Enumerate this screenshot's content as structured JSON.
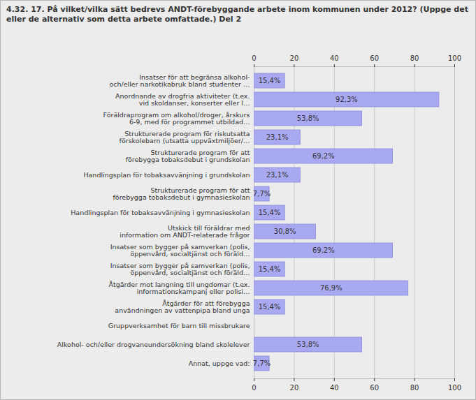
{
  "chart_data": {
    "type": "bar",
    "title": "4.32. 17. På vilket/vilka sätt bedrevs ANDT-förebyggande arbete inom kommunen under 2012? (Uppge det eller de alternativ som detta arbete omfattade.) Del 2",
    "orientation": "horizontal",
    "categories": [
      "Insatser för att begränsa alkohol-\noch/eller narkotikabruk bland studenter …",
      "Anordnande av drogfria aktiviteter (t.ex.\nvid skoldanser, konserter eller l…",
      "Föräldraprogram om alkohol/droger, årskurs\n6-9, med för programmet utbildad…",
      "Strukturerade program för riskutsatta\nförskolebarn (utsatta uppväxtmiljöer/…",
      "Strukturerade program för att\nförebygga tobaksdebut i grundskolan",
      "Handlingsplan för tobaksavvänjning i grundskolan",
      "Strukturerade program för att\nförebygga tobaksdebut i gymnasieskolan",
      "Handlingsplan för tobaksavvänjning i gymnasieskolan",
      "Utskick till föräldrar med\ninformation om ANDT-relaterade frågor",
      "Insatser som bygger på samverkan (polis,\nöppenvård, socialtjänst och föräld…",
      "Insatser som bygger på samverkan (polis,\nöppenvård, socialtjänst och föräld…",
      "Åtgärder mot langning till ungdomar (t.ex.\ninformationskampanj eller polisi…",
      "Åtgärder för att förebygga\nanvändningen av vattenpipa bland unga",
      "Gruppverksamhet för barn till missbrukare",
      "Alkohol- och/eller drogvaneundersökning bland skolelever",
      "Annat, uppge vad:"
    ],
    "values": [
      15.4,
      92.3,
      53.8,
      23.1,
      69.2,
      23.1,
      7.7,
      15.4,
      30.8,
      69.2,
      15.4,
      76.9,
      15.4,
      null,
      53.8,
      7.7
    ],
    "value_labels": [
      "15,4%",
      "92,3%",
      "53,8%",
      "23,1%",
      "69,2%",
      "23,1%",
      "7,7%",
      "15,4%",
      "30,8%",
      "69,2%",
      "15,4%",
      "76,9%",
      "15,4%",
      null,
      "53,8%",
      "7,7%"
    ],
    "color": "#a9a9f2",
    "xlim": [
      0,
      100
    ],
    "xticks": [
      0,
      20,
      40,
      60,
      80,
      100
    ],
    "grid": true,
    "data_labels": true
  }
}
